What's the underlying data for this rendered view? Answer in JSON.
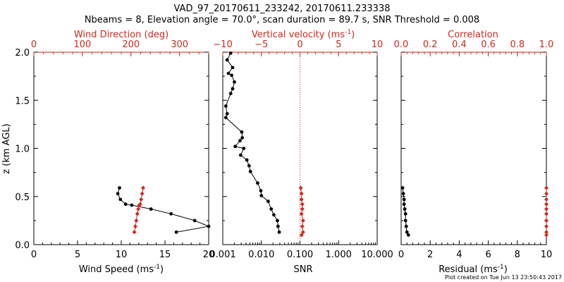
{
  "figure": {
    "title": "VAD_97_20170611_233242, 20170611.233338",
    "subtitle": "Nbeams = 8, Elevation angle = 70.0°, scan duration = 89.7 s, SNR Threshold = 0.008",
    "footer": "Plot created on Tue Jun 13 23:50:43 2017",
    "colors": {
      "black": "#000000",
      "red": "#cc2a1e"
    }
  },
  "chart_data": [
    {
      "type": "line",
      "panel": "left",
      "xlabel_bottom": "Wind Speed (ms",
      "xlabel_bottom_sup": "-1",
      "xlabel_bottom_end": ")",
      "xlabel_top": "Wind Direction (deg)",
      "ylabel": "z (km AGL)",
      "ylim": [
        0.0,
        2.0
      ],
      "yticks": [
        "0.0",
        "0.5",
        "1.0",
        "1.5",
        "2.0"
      ],
      "xlim_bottom": [
        0,
        20
      ],
      "xticks_bottom": [
        "0",
        "5",
        "10",
        "15",
        "20"
      ],
      "xlim_top": [
        0,
        360
      ],
      "xticks_top": [
        "0",
        "100",
        "200",
        "300"
      ],
      "series": [
        {
          "axis": "bottom",
          "color": "#000000",
          "marker": "circle",
          "x": [
            9.8,
            9.6,
            9.9,
            10.5,
            11.2,
            13.4,
            15.7,
            18.4,
            20.0,
            16.3
          ],
          "y": [
            0.59,
            0.53,
            0.47,
            0.42,
            0.41,
            0.37,
            0.32,
            0.25,
            0.19,
            0.13
          ]
        },
        {
          "axis": "top",
          "color": "#cc2a1e",
          "marker": "diamond",
          "x": [
            225,
            223,
            221,
            219,
            217,
            215,
            213,
            211,
            209,
            207
          ],
          "y": [
            0.59,
            0.53,
            0.47,
            0.42,
            0.41,
            0.37,
            0.32,
            0.25,
            0.19,
            0.13
          ]
        }
      ]
    },
    {
      "type": "line",
      "panel": "middle",
      "xlabel_bottom": "SNR",
      "xlabel_top": "Vertical velocity (ms",
      "xlabel_top_sup": "-1",
      "xlabel_top_end": ")",
      "ylim": [
        0.0,
        2.0
      ],
      "xscale_bottom": "log",
      "xlim_bottom": [
        0.001,
        10
      ],
      "xticks_bottom": [
        "0.001",
        "0.010",
        "0.100",
        "1.000",
        "10.000"
      ],
      "xlim_top": [
        -10,
        10
      ],
      "xticks_top": [
        "−10",
        "−5",
        "0",
        "5",
        "10"
      ],
      "reference_line": {
        "axis": "top",
        "x": 0,
        "style": "dotted",
        "color": "#cc2a1e"
      },
      "series": [
        {
          "axis": "bottom",
          "color": "#000000",
          "marker": "circle",
          "x": [
            0.0016,
            0.0013,
            0.0018,
            0.0014,
            0.0017,
            0.002,
            0.0018,
            0.0016,
            0.0012,
            0.0013,
            0.0012,
            0.0031,
            0.0032,
            0.0028,
            0.0021,
            0.0035,
            0.0029,
            0.0042,
            0.0048,
            0.0052,
            0.008,
            0.0097,
            0.01,
            0.015,
            0.018,
            0.021,
            0.026,
            0.027,
            0.029
          ],
          "y": [
            1.99,
            1.92,
            1.84,
            1.78,
            1.76,
            1.69,
            1.62,
            1.57,
            1.44,
            1.36,
            1.32,
            1.17,
            1.11,
            1.08,
            1.02,
            1.0,
            0.93,
            0.88,
            0.82,
            0.76,
            0.64,
            0.56,
            0.51,
            0.45,
            0.37,
            0.31,
            0.25,
            0.19,
            0.13
          ]
        },
        {
          "axis": "top",
          "color": "#cc2a1e",
          "marker": "diamond",
          "x": [
            0.1,
            0.2,
            0.2,
            0.3,
            0.3,
            0.2,
            0.4,
            0.3,
            0.4,
            0.2
          ],
          "y": [
            0.59,
            0.53,
            0.47,
            0.42,
            0.37,
            0.32,
            0.25,
            0.19,
            0.13,
            0.1
          ]
        }
      ]
    },
    {
      "type": "line",
      "panel": "right",
      "xlabel_bottom": "Residual (ms",
      "xlabel_bottom_sup": "-1",
      "xlabel_bottom_end": ")",
      "xlabel_top": "Correlation",
      "ylim": [
        0.0,
        2.0
      ],
      "xlim_bottom": [
        0,
        10
      ],
      "xticks_bottom": [
        "0",
        "2",
        "4",
        "6",
        "8",
        "10"
      ],
      "xlim_top": [
        0.0,
        1.0
      ],
      "xticks_top": [
        "0.0",
        "0.2",
        "0.4",
        "0.6",
        "0.8",
        "1.0"
      ],
      "series": [
        {
          "axis": "bottom",
          "color": "#000000",
          "marker": "circle",
          "x": [
            0.1,
            0.15,
            0.2,
            0.2,
            0.25,
            0.3,
            0.3,
            0.35,
            0.4,
            0.5
          ],
          "y": [
            0.59,
            0.53,
            0.47,
            0.42,
            0.37,
            0.32,
            0.25,
            0.19,
            0.13,
            0.1
          ]
        },
        {
          "axis": "top",
          "color": "#cc2a1e",
          "marker": "diamond",
          "x": [
            1.0,
            1.0,
            1.0,
            1.0,
            1.0,
            1.0,
            1.0,
            1.0,
            1.0,
            1.0
          ],
          "y": [
            0.59,
            0.53,
            0.47,
            0.42,
            0.37,
            0.32,
            0.25,
            0.19,
            0.13,
            0.1
          ]
        }
      ]
    }
  ]
}
